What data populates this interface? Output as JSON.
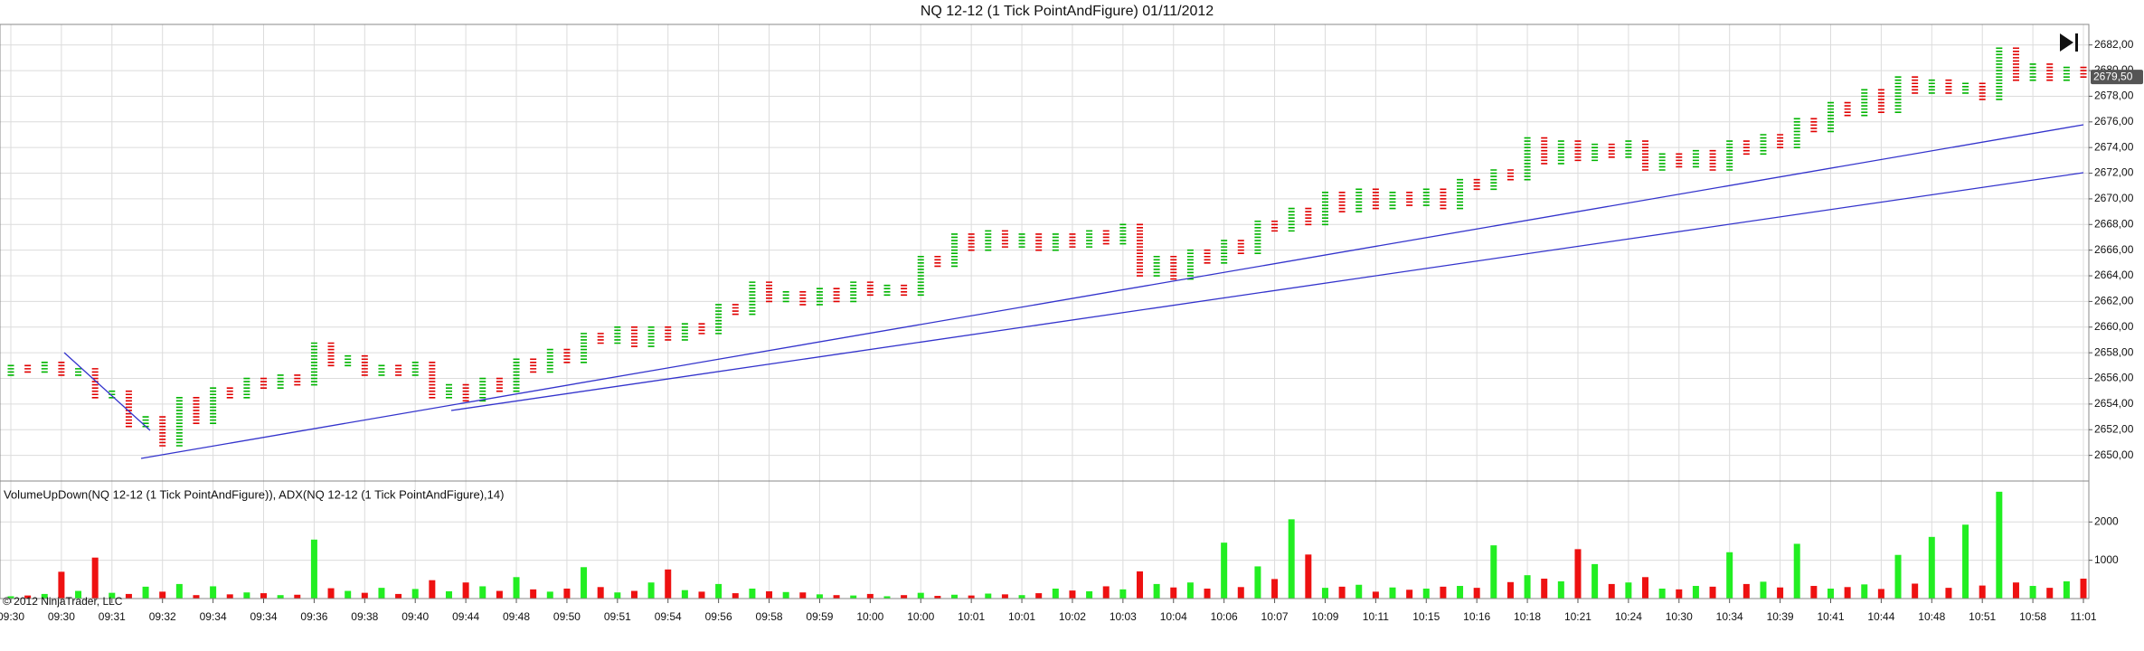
{
  "chart_data": [
    {
      "type": "pointandfigure",
      "title": "NQ 12-12 (1 Tick PointAndFigure)  01/11/2012",
      "box_size": 0.25,
      "column_types": "XOXOXOXOXOXOXOXOXOXOXOXOXOXOXOXOXOXOXOXOXOXOXOXOXOXOXOXOXOXOXOXOXOXOXOXOXOXOXOXOXOXOXOXOXOXOXOXOXOXOXOXOXOXOXOXOXOXOXOXOXOXOXOXOXOXOXO",
      "up_color": "#00b400",
      "down_color": "#e00000",
      "lows": [
        2656.25,
        2656.5,
        2656.5,
        2656.25,
        2656.25,
        2654.5,
        2654.5,
        2652.25,
        2652.25,
        2650.75,
        2650.75,
        2652.5,
        2652.5,
        2654.5,
        2654.5,
        2655.25,
        2655.25,
        2655.5,
        2655.5,
        2657,
        2657,
        2656.25,
        2656.25,
        2656.25,
        2656.25,
        2654.5,
        2654.5,
        2654.25,
        2654.25,
        2655,
        2655,
        2656.5,
        2656.5,
        2657.25,
        2657.25,
        2658.75,
        2658.75,
        2658.5,
        2658.5,
        2659,
        2659,
        2659.5,
        2659.5,
        2661,
        2661,
        2662,
        2662,
        2661.75,
        2661.75,
        2662,
        2662,
        2662.5,
        2662.5,
        2662.5,
        2662.5,
        2664.75,
        2664.75,
        2666,
        2666,
        2666.25,
        2666.25,
        2666,
        2666,
        2666.25,
        2666.25,
        2666.5,
        2666.5,
        2664,
        2664,
        2663.75,
        2663.75,
        2665,
        2665,
        2665.75,
        2665.75,
        2667.5,
        2667.5,
        2668,
        2668,
        2669,
        2669,
        2669.25,
        2669.25,
        2669.5,
        2669.5,
        2669.25,
        2669.25,
        2670.75,
        2670.75,
        2671.5,
        2671.5,
        2672.75,
        2672.75,
        2673,
        2673,
        2673.25,
        2673.25,
        2672.25,
        2672.25,
        2672.5,
        2672.5,
        2672.25,
        2672.25,
        2673.5,
        2673.5,
        2674,
        2674,
        2675.25,
        2675.25,
        2676.5,
        2676.5,
        2676.75,
        2676.75,
        2678.25,
        2678.25,
        2678.25,
        2678.25,
        2677.75,
        2677.75,
        2679.25,
        2679.25,
        2679.25,
        2679.25,
        2679.5
      ],
      "highs": [
        2657,
        2657,
        2657.25,
        2657.25,
        2656.75,
        2656.75,
        2655,
        2655,
        2653,
        2653,
        2654.5,
        2654.5,
        2655.25,
        2655.25,
        2656,
        2656,
        2656.25,
        2656.25,
        2658.75,
        2658.75,
        2657.75,
        2657.75,
        2657,
        2657,
        2657.25,
        2657.25,
        2655.5,
        2655.5,
        2656,
        2656,
        2657.5,
        2657.5,
        2658.25,
        2658.25,
        2659.5,
        2659.5,
        2660,
        2660,
        2660,
        2660,
        2660.25,
        2660.25,
        2661.75,
        2661.75,
        2663.5,
        2663.5,
        2662.75,
        2662.75,
        2663,
        2663,
        2663.5,
        2663.5,
        2663.25,
        2663.25,
        2665.5,
        2665.5,
        2667.25,
        2667.25,
        2667.5,
        2667.5,
        2667.25,
        2667.25,
        2667.25,
        2667.25,
        2667.5,
        2667.5,
        2668,
        2668,
        2665.5,
        2665.5,
        2666,
        2666,
        2666.75,
        2666.75,
        2668.25,
        2668.25,
        2669.25,
        2669.25,
        2670.5,
        2670.5,
        2670.75,
        2670.75,
        2670.5,
        2670.5,
        2670.75,
        2670.75,
        2671.5,
        2671.5,
        2672.25,
        2672.25,
        2674.75,
        2674.75,
        2674.5,
        2674.5,
        2674.25,
        2674.25,
        2674.5,
        2674.5,
        2673.5,
        2673.5,
        2673.75,
        2673.75,
        2674.5,
        2674.5,
        2675,
        2675,
        2676.25,
        2676.25,
        2677.5,
        2677.5,
        2678.5,
        2678.5,
        2679.5,
        2679.5,
        2679.25,
        2679.25,
        2679,
        2679,
        2681.75,
        2681.75,
        2680.5,
        2680.5,
        2680.25,
        2680.25
      ],
      "ylim": [
        2648,
        2683.6
      ],
      "yticks": [
        {
          "value": 2650,
          "label": "2650,00"
        },
        {
          "value": 2652,
          "label": "2652,00"
        },
        {
          "value": 2654,
          "label": "2654,00"
        },
        {
          "value": 2656,
          "label": "2656,00"
        },
        {
          "value": 2658,
          "label": "2658,00"
        },
        {
          "value": 2660,
          "label": "2660,00"
        },
        {
          "value": 2662,
          "label": "2662,00"
        },
        {
          "value": 2664,
          "label": "2664,00"
        },
        {
          "value": 2666,
          "label": "2666,00"
        },
        {
          "value": 2668,
          "label": "2668,00"
        },
        {
          "value": 2670,
          "label": "2670,00"
        },
        {
          "value": 2672,
          "label": "2672,00"
        },
        {
          "value": 2674,
          "label": "2674,00"
        },
        {
          "value": 2676,
          "label": "2676,00"
        },
        {
          "value": 2678,
          "label": "2678,00"
        },
        {
          "value": 2680,
          "label": "2680,00"
        },
        {
          "value": 2682,
          "label": "2682,00"
        }
      ],
      "last_price": {
        "value": 2679.5,
        "label": "2679,50"
      },
      "grid": true
    },
    {
      "type": "bar",
      "title": "VolumeUpDown(NQ 12-12 (1 Tick PointAndFigure)), ADX(NQ 12-12 (1 Tick PointAndFigure),14)",
      "annotation": "© 2012 NinjaTrader, LLC",
      "up_color": "#22ee22",
      "down_color": "#ee1111",
      "categories": [
        "09:30",
        null,
        null,
        "09:30",
        null,
        null,
        "09:31",
        null,
        null,
        "09:32",
        null,
        null,
        "09:34",
        null,
        null,
        "09:34",
        null,
        null,
        "09:36",
        null,
        null,
        "09:38",
        null,
        null,
        "09:40",
        null,
        null,
        "09:44",
        null,
        null,
        "09:48",
        null,
        null,
        "09:50",
        null,
        null,
        "09:51",
        null,
        null,
        "09:54",
        null,
        null,
        "09:56",
        null,
        null,
        "09:58",
        null,
        null,
        "09:59",
        null,
        null,
        "10:00",
        null,
        null,
        "10:00",
        null,
        null,
        "10:01",
        null,
        null,
        "10:01",
        null,
        null,
        "10:02",
        null,
        null,
        "10:03",
        null,
        null,
        "10:04",
        null,
        null,
        "10:06",
        null,
        null,
        "10:07",
        null,
        null,
        "10:09",
        null,
        null,
        "10:11",
        null,
        null,
        "10:15",
        null,
        null,
        "10:16",
        null,
        null,
        "10:18",
        null,
        null,
        "10:21",
        null,
        null,
        "10:24",
        null,
        null,
        "10:30",
        null,
        null,
        "10:34",
        null,
        null,
        "10:39",
        null,
        null,
        "10:41",
        null,
        null,
        "10:44",
        null,
        null,
        "10:48",
        null,
        null,
        "10:51",
        null,
        null,
        "10:58",
        null,
        null,
        "11:01"
      ],
      "values": [
        60,
        80,
        120,
        700,
        200,
        1070,
        150,
        120,
        310,
        180,
        380,
        90,
        320,
        110,
        160,
        140,
        90,
        100,
        1540,
        270,
        200,
        150,
        280,
        120,
        250,
        480,
        190,
        420,
        320,
        200,
        560,
        240,
        180,
        260,
        820,
        300,
        160,
        200,
        420,
        760,
        220,
        180,
        380,
        140,
        260,
        190,
        170,
        160,
        110,
        90,
        80,
        120,
        60,
        90,
        150,
        70,
        100,
        80,
        130,
        110,
        90,
        140,
        260,
        210,
        190,
        320,
        240,
        710,
        380,
        290,
        420,
        260,
        1460,
        300,
        840,
        510,
        2070,
        1150,
        280,
        310,
        360,
        180,
        290,
        230,
        260,
        310,
        330,
        280,
        1390,
        430,
        610,
        520,
        450,
        1290,
        900,
        380,
        420,
        560,
        260,
        240,
        330,
        310,
        1210,
        380,
        440,
        290,
        1430,
        330,
        260,
        300,
        370,
        250,
        1140,
        390,
        1610,
        280,
        1930,
        340,
        2790,
        420,
        330,
        280,
        450,
        520
      ],
      "ylim": [
        0,
        3070
      ],
      "yticks": [
        1000,
        2000
      ],
      "grid": true
    }
  ]
}
